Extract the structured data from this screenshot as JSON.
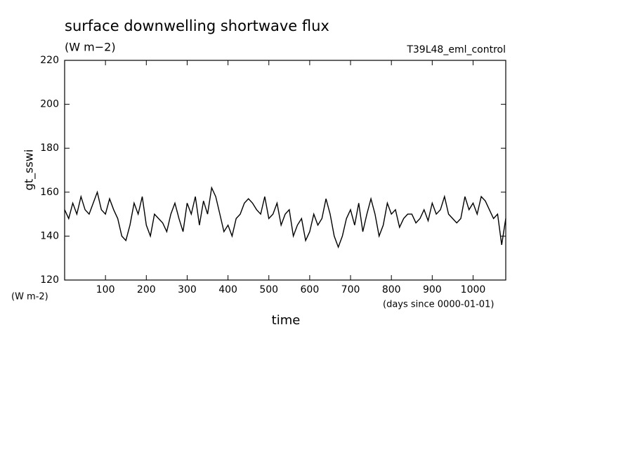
{
  "chart_data": {
    "type": "line",
    "title": "surface downwelling shortwave flux",
    "subtitle": "(W m−2)",
    "run_label": "T39L48_eml_control",
    "y_label": "gt_sswi",
    "y_unit": "(W m-2)",
    "x_label": "time",
    "x_unit": "(days since 0000-01-01)",
    "color": "#000000",
    "xlim": [
      0,
      1080
    ],
    "ylim": [
      120,
      220
    ],
    "xticks": [
      100,
      200,
      300,
      400,
      500,
      600,
      700,
      800,
      900,
      1000
    ],
    "yticks": [
      120,
      140,
      160,
      180,
      200,
      220
    ],
    "x": [
      0,
      10,
      20,
      30,
      40,
      50,
      60,
      70,
      80,
      90,
      100,
      110,
      120,
      130,
      140,
      150,
      160,
      170,
      180,
      190,
      200,
      210,
      220,
      230,
      240,
      250,
      260,
      270,
      280,
      290,
      300,
      310,
      320,
      330,
      340,
      350,
      360,
      370,
      380,
      390,
      400,
      410,
      420,
      430,
      440,
      450,
      460,
      470,
      480,
      490,
      500,
      510,
      520,
      530,
      540,
      550,
      560,
      570,
      580,
      590,
      600,
      610,
      620,
      630,
      640,
      650,
      660,
      670,
      680,
      690,
      700,
      710,
      720,
      730,
      740,
      750,
      760,
      770,
      780,
      790,
      800,
      810,
      820,
      830,
      840,
      850,
      860,
      870,
      880,
      890,
      900,
      910,
      920,
      930,
      940,
      950,
      960,
      970,
      980,
      990,
      1000,
      1010,
      1020,
      1030,
      1040,
      1050,
      1060,
      1070,
      1080
    ],
    "values": [
      152,
      148,
      155,
      150,
      158,
      152,
      150,
      155,
      160,
      152,
      150,
      157,
      152,
      148,
      140,
      138,
      145,
      155,
      150,
      158,
      145,
      140,
      150,
      148,
      146,
      142,
      150,
      155,
      148,
      142,
      155,
      150,
      158,
      145,
      156,
      150,
      162,
      158,
      150,
      142,
      145,
      140,
      148,
      150,
      155,
      157,
      155,
      152,
      150,
      158,
      148,
      150,
      155,
      145,
      150,
      152,
      140,
      145,
      148,
      138,
      142,
      150,
      145,
      148,
      157,
      150,
      140,
      135,
      140,
      148,
      152,
      145,
      155,
      142,
      150,
      157,
      150,
      140,
      145,
      155,
      150,
      152,
      144,
      148,
      150,
      150,
      146,
      148,
      152,
      147,
      155,
      150,
      152,
      158,
      150,
      148,
      146,
      148,
      158,
      152,
      155,
      150,
      158,
      156,
      152,
      148,
      150,
      136,
      148
    ]
  }
}
